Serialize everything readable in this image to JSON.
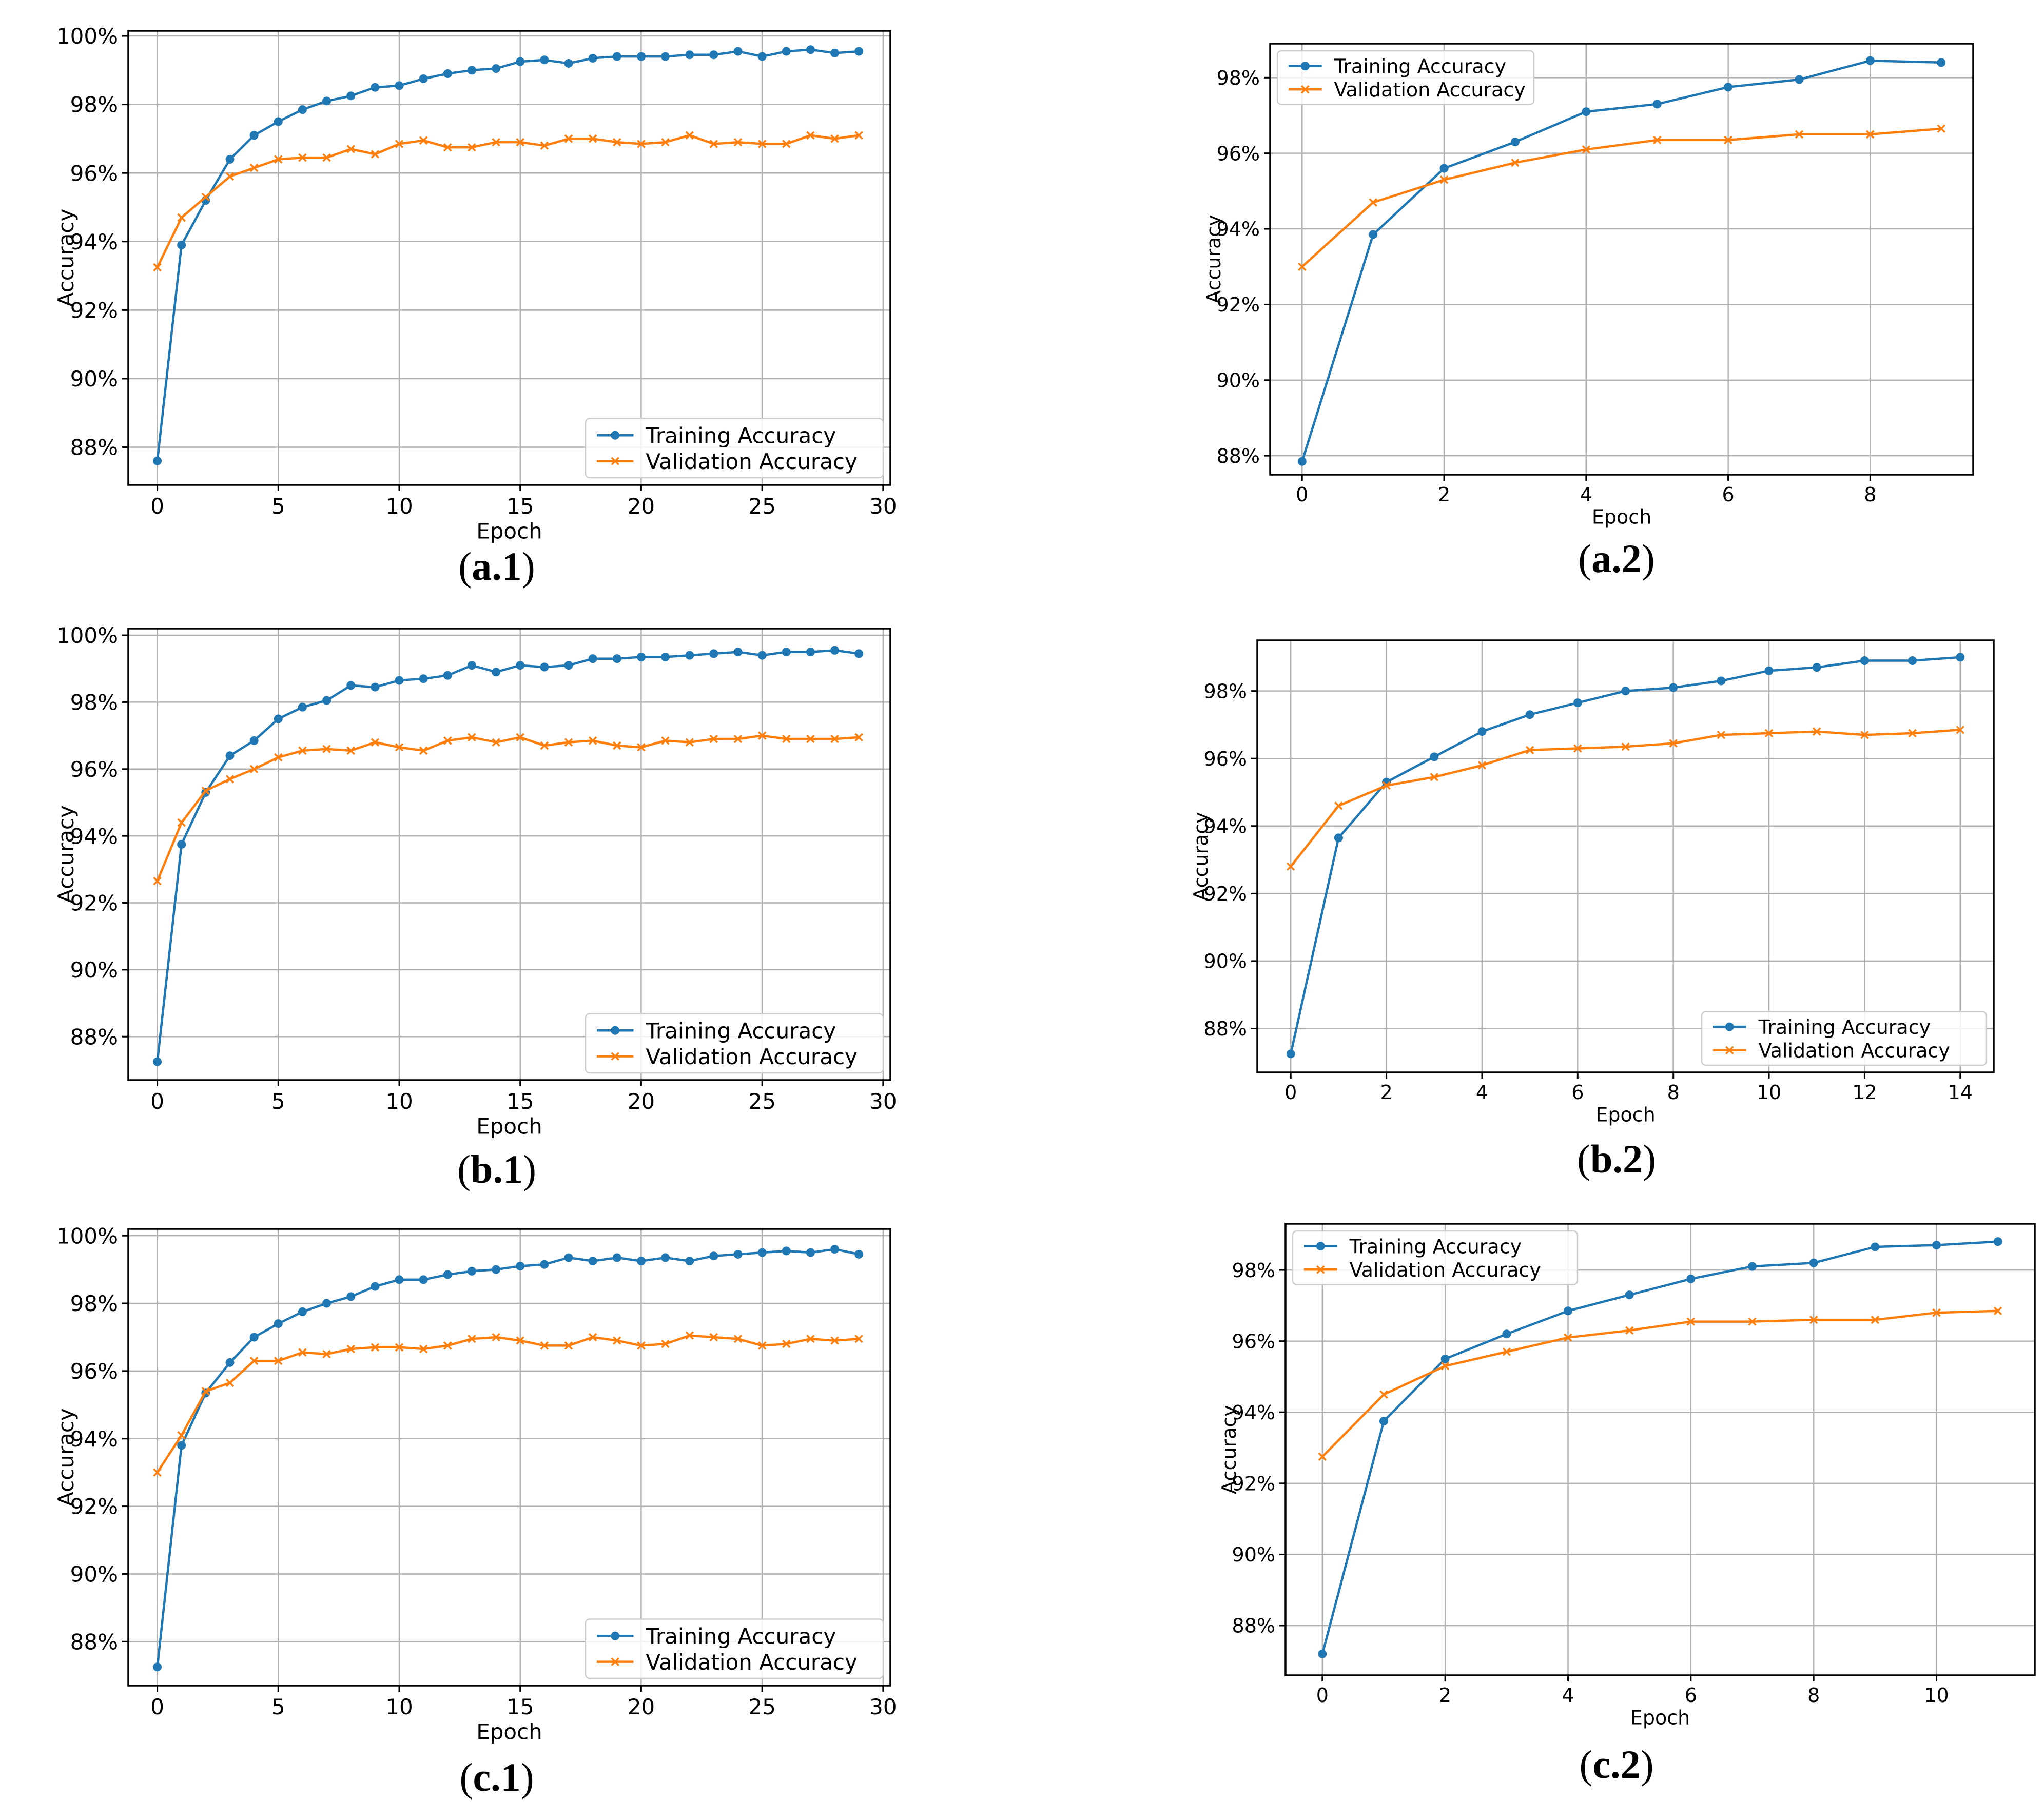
{
  "colors": {
    "training": "#1f77b4",
    "validation": "#ff7f0e"
  },
  "chart_data": [
    {
      "caption_letter": "a",
      "caption_num": "1",
      "type": "line",
      "xlabel": "Epoch",
      "ylabel": "Accuracy",
      "xlim": [
        -1.2,
        30.3
      ],
      "ylim": [
        86.9,
        100.15
      ],
      "xticks": [
        "0",
        "5",
        "10",
        "15",
        "20",
        "25",
        "30"
      ],
      "yticks": [
        "88%",
        "90%",
        "92%",
        "94%",
        "96%",
        "98%",
        "100%"
      ],
      "legend": {
        "position": "bottom-right"
      },
      "series": [
        {
          "name": "Training Accuracy",
          "marker": "dot",
          "x": [
            0,
            1,
            2,
            3,
            4,
            5,
            6,
            7,
            8,
            9,
            10,
            11,
            12,
            13,
            14,
            15,
            16,
            17,
            18,
            19,
            20,
            21,
            22,
            23,
            24,
            25,
            26,
            27,
            28,
            29
          ],
          "values": [
            87.6,
            93.9,
            95.2,
            96.4,
            97.1,
            97.5,
            97.85,
            98.1,
            98.25,
            98.5,
            98.55,
            98.75,
            98.9,
            99.0,
            99.05,
            99.25,
            99.3,
            99.2,
            99.35,
            99.4,
            99.4,
            99.4,
            99.45,
            99.45,
            99.55,
            99.4,
            99.55,
            99.6,
            99.5,
            99.55
          ]
        },
        {
          "name": "Validation Accuracy",
          "marker": "x",
          "x": [
            0,
            1,
            2,
            3,
            4,
            5,
            6,
            7,
            8,
            9,
            10,
            11,
            12,
            13,
            14,
            15,
            16,
            17,
            18,
            19,
            20,
            21,
            22,
            23,
            24,
            25,
            26,
            27,
            28,
            29
          ],
          "values": [
            93.25,
            94.7,
            95.3,
            95.9,
            96.15,
            96.4,
            96.45,
            96.45,
            96.7,
            96.55,
            96.85,
            96.95,
            96.75,
            96.75,
            96.9,
            96.9,
            96.8,
            97.0,
            97.0,
            96.9,
            96.85,
            96.9,
            97.1,
            96.85,
            96.9,
            96.85,
            96.85,
            97.1,
            97.0,
            97.1
          ]
        }
      ]
    },
    {
      "caption_letter": "a",
      "caption_num": "2",
      "type": "line",
      "xlabel": "Epoch",
      "ylabel": "Accuracy",
      "xlim": [
        -0.45,
        9.45
      ],
      "ylim": [
        87.5,
        98.9
      ],
      "xticks": [
        "0",
        "2",
        "4",
        "6",
        "8"
      ],
      "yticks": [
        "88%",
        "90%",
        "92%",
        "94%",
        "96%",
        "98%"
      ],
      "legend": {
        "position": "top-left"
      },
      "series": [
        {
          "name": "Training Accuracy",
          "marker": "dot",
          "x": [
            0,
            1,
            2,
            3,
            4,
            5,
            6,
            7,
            8,
            9
          ],
          "values": [
            87.85,
            93.85,
            95.6,
            96.3,
            97.1,
            97.3,
            97.75,
            97.95,
            98.45,
            98.4
          ]
        },
        {
          "name": "Validation Accuracy",
          "marker": "x",
          "x": [
            0,
            1,
            2,
            3,
            4,
            5,
            6,
            7,
            8,
            9
          ],
          "values": [
            93.0,
            94.7,
            95.3,
            95.75,
            96.1,
            96.35,
            96.35,
            96.5,
            96.5,
            96.65
          ]
        }
      ]
    },
    {
      "caption_letter": "b",
      "caption_num": "1",
      "type": "line",
      "xlabel": "Epoch",
      "ylabel": "Accuracy",
      "xlim": [
        -1.2,
        30.3
      ],
      "ylim": [
        86.7,
        100.2
      ],
      "xticks": [
        "0",
        "5",
        "10",
        "15",
        "20",
        "25",
        "30"
      ],
      "yticks": [
        "88%",
        "90%",
        "92%",
        "94%",
        "96%",
        "98%",
        "100%"
      ],
      "legend": {
        "position": "bottom-right"
      },
      "series": [
        {
          "name": "Training Accuracy",
          "marker": "dot",
          "x": [
            0,
            1,
            2,
            3,
            4,
            5,
            6,
            7,
            8,
            9,
            10,
            11,
            12,
            13,
            14,
            15,
            16,
            17,
            18,
            19,
            20,
            21,
            22,
            23,
            24,
            25,
            26,
            27,
            28,
            29
          ],
          "values": [
            87.25,
            93.75,
            95.3,
            96.4,
            96.85,
            97.5,
            97.85,
            98.05,
            98.5,
            98.45,
            98.65,
            98.7,
            98.8,
            99.1,
            98.9,
            99.1,
            99.05,
            99.1,
            99.3,
            99.3,
            99.35,
            99.35,
            99.4,
            99.45,
            99.5,
            99.4,
            99.5,
            99.5,
            99.55,
            99.45
          ]
        },
        {
          "name": "Validation Accuracy",
          "marker": "x",
          "x": [
            0,
            1,
            2,
            3,
            4,
            5,
            6,
            7,
            8,
            9,
            10,
            11,
            12,
            13,
            14,
            15,
            16,
            17,
            18,
            19,
            20,
            21,
            22,
            23,
            24,
            25,
            26,
            27,
            28,
            29
          ],
          "values": [
            92.65,
            94.4,
            95.35,
            95.7,
            96.0,
            96.35,
            96.55,
            96.6,
            96.55,
            96.8,
            96.65,
            96.55,
            96.85,
            96.95,
            96.8,
            96.95,
            96.7,
            96.8,
            96.85,
            96.7,
            96.65,
            96.85,
            96.8,
            96.9,
            96.9,
            97.0,
            96.9,
            96.9,
            96.9,
            96.95
          ]
        }
      ]
    },
    {
      "caption_letter": "b",
      "caption_num": "2",
      "type": "line",
      "xlabel": "Epoch",
      "ylabel": "Accuracy",
      "xlim": [
        -0.7,
        14.7
      ],
      "ylim": [
        86.7,
        99.5
      ],
      "xticks": [
        "0",
        "2",
        "4",
        "6",
        "8",
        "10",
        "12",
        "14"
      ],
      "yticks": [
        "88%",
        "90%",
        "92%",
        "94%",
        "96%",
        "98%"
      ],
      "legend": {
        "position": "bottom-right"
      },
      "series": [
        {
          "name": "Training Accuracy",
          "marker": "dot",
          "x": [
            0,
            1,
            2,
            3,
            4,
            5,
            6,
            7,
            8,
            9,
            10,
            11,
            12,
            13,
            14
          ],
          "values": [
            87.25,
            93.65,
            95.3,
            96.05,
            96.8,
            97.3,
            97.65,
            98.0,
            98.1,
            98.3,
            98.6,
            98.7,
            98.9,
            98.9,
            99.0
          ]
        },
        {
          "name": "Validation Accuracy",
          "marker": "x",
          "x": [
            0,
            1,
            2,
            3,
            4,
            5,
            6,
            7,
            8,
            9,
            10,
            11,
            12,
            13,
            14
          ],
          "values": [
            92.8,
            94.6,
            95.2,
            95.45,
            95.8,
            96.25,
            96.3,
            96.35,
            96.45,
            96.7,
            96.75,
            96.8,
            96.7,
            96.75,
            96.85
          ]
        }
      ]
    },
    {
      "caption_letter": "c",
      "caption_num": "1",
      "type": "line",
      "xlabel": "Epoch",
      "ylabel": "Accuracy",
      "xlim": [
        -1.2,
        30.3
      ],
      "ylim": [
        86.7,
        100.2
      ],
      "xticks": [
        "0",
        "5",
        "10",
        "15",
        "20",
        "25",
        "30"
      ],
      "yticks": [
        "88%",
        "90%",
        "92%",
        "94%",
        "96%",
        "98%",
        "100%"
      ],
      "legend": {
        "position": "bottom-right"
      },
      "series": [
        {
          "name": "Training Accuracy",
          "marker": "dot",
          "x": [
            0,
            1,
            2,
            3,
            4,
            5,
            6,
            7,
            8,
            9,
            10,
            11,
            12,
            13,
            14,
            15,
            16,
            17,
            18,
            19,
            20,
            21,
            22,
            23,
            24,
            25,
            26,
            27,
            28,
            29
          ],
          "values": [
            87.25,
            93.8,
            95.35,
            96.25,
            97.0,
            97.4,
            97.75,
            98.0,
            98.2,
            98.5,
            98.7,
            98.7,
            98.85,
            98.95,
            99.0,
            99.1,
            99.15,
            99.35,
            99.25,
            99.35,
            99.25,
            99.35,
            99.25,
            99.4,
            99.45,
            99.5,
            99.55,
            99.5,
            99.6,
            99.45
          ]
        },
        {
          "name": "Validation Accuracy",
          "marker": "x",
          "x": [
            0,
            1,
            2,
            3,
            4,
            5,
            6,
            7,
            8,
            9,
            10,
            11,
            12,
            13,
            14,
            15,
            16,
            17,
            18,
            19,
            20,
            21,
            22,
            23,
            24,
            25,
            26,
            27,
            28,
            29
          ],
          "values": [
            93.0,
            94.1,
            95.4,
            95.65,
            96.3,
            96.3,
            96.55,
            96.5,
            96.65,
            96.7,
            96.7,
            96.65,
            96.75,
            96.95,
            97.0,
            96.9,
            96.75,
            96.75,
            97.0,
            96.9,
            96.75,
            96.8,
            97.05,
            97.0,
            96.95,
            96.75,
            96.8,
            96.95,
            96.9,
            96.95
          ]
        }
      ]
    },
    {
      "caption_letter": "c",
      "caption_num": "2",
      "type": "line",
      "xlabel": "Epoch",
      "ylabel": "Accuracy",
      "xlim": [
        -0.6,
        11.6
      ],
      "ylim": [
        86.6,
        99.3
      ],
      "xticks": [
        "0",
        "2",
        "4",
        "6",
        "8",
        "10"
      ],
      "yticks": [
        "88%",
        "90%",
        "92%",
        "94%",
        "96%",
        "98%"
      ],
      "legend": {
        "position": "top-left"
      },
      "series": [
        {
          "name": "Training Accuracy",
          "marker": "dot",
          "x": [
            0,
            1,
            2,
            3,
            4,
            5,
            6,
            7,
            8,
            9,
            10,
            11
          ],
          "values": [
            87.2,
            93.75,
            95.5,
            96.2,
            96.85,
            97.3,
            97.75,
            98.1,
            98.2,
            98.65,
            98.7,
            98.8
          ]
        },
        {
          "name": "Validation Accuracy",
          "marker": "x",
          "x": [
            0,
            1,
            2,
            3,
            4,
            5,
            6,
            7,
            8,
            9,
            10,
            11
          ],
          "values": [
            92.75,
            94.5,
            95.3,
            95.7,
            96.1,
            96.3,
            96.55,
            96.55,
            96.6,
            96.6,
            96.8,
            96.85
          ]
        }
      ]
    }
  ]
}
